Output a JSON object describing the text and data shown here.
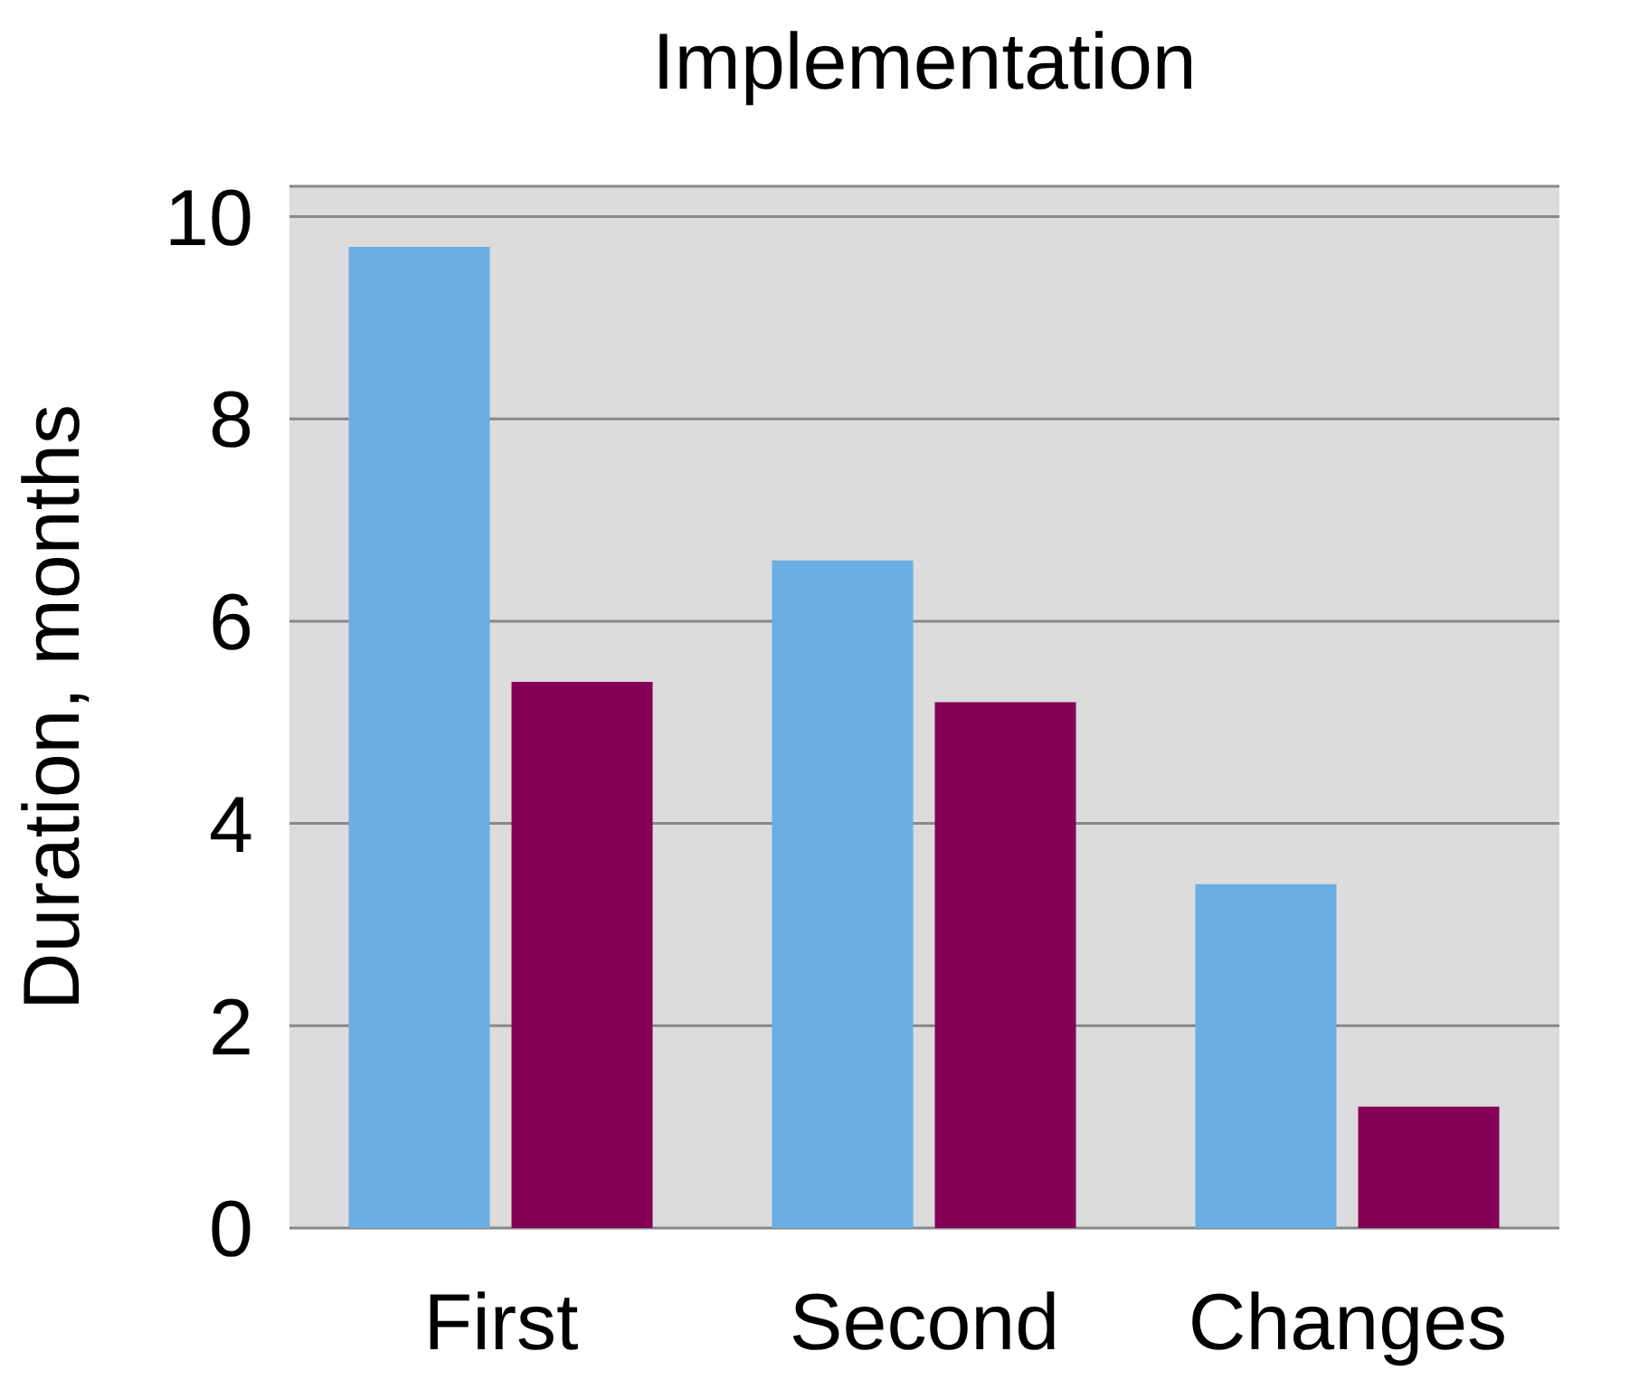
{
  "chart_data": {
    "type": "bar",
    "title": "Implementation",
    "ylabel": "Duration, months",
    "categories": [
      "First",
      "Second",
      "Changes"
    ],
    "series": [
      {
        "color": "#6aaee3",
        "values": [
          9.7,
          6.6,
          3.4
        ]
      },
      {
        "color": "#850057",
        "values": [
          5.4,
          5.2,
          1.2
        ]
      }
    ],
    "ylim": [
      0,
      10.3
    ],
    "yticks": [
      0,
      2,
      4,
      6,
      8,
      10
    ],
    "grid": "y"
  }
}
